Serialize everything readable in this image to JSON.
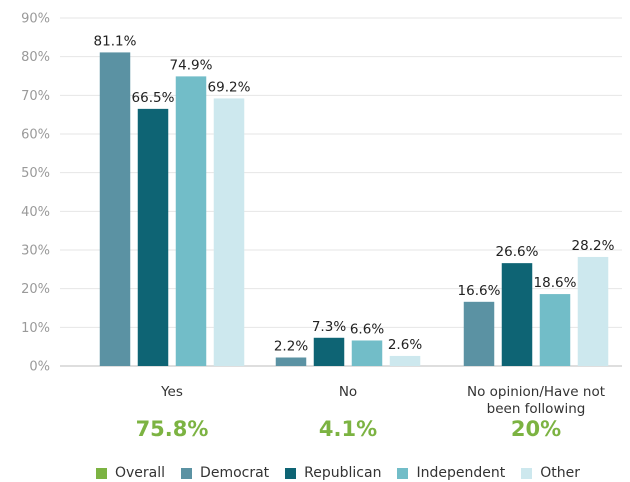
{
  "chart_data": {
    "type": "bar",
    "categories": [
      "Yes",
      "No",
      "No opinion/Have not been following"
    ],
    "category_lines": [
      [
        "Yes"
      ],
      [
        "No"
      ],
      [
        "No opinion/Have not",
        "been following"
      ]
    ],
    "ylim": [
      0,
      90
    ],
    "yticks": [
      0,
      10,
      20,
      30,
      40,
      50,
      60,
      70,
      80,
      90
    ],
    "ytick_labels": [
      "0%",
      "10%",
      "20%",
      "30%",
      "40%",
      "50%",
      "60%",
      "70%",
      "80%",
      "90%"
    ],
    "grid": true,
    "series": [
      {
        "name": "Democrat",
        "color": "#5b92a3",
        "values": [
          81.1,
          2.2,
          16.6
        ],
        "labels": [
          "81.1%",
          "2.2%",
          "16.6%"
        ]
      },
      {
        "name": "Republican",
        "color": "#0e6474",
        "values": [
          66.5,
          7.3,
          26.6
        ],
        "labels": [
          "66.5%",
          "7.3%",
          "26.6%"
        ]
      },
      {
        "name": "Independent",
        "color": "#72bdc8",
        "values": [
          74.9,
          6.6,
          18.6
        ],
        "labels": [
          "74.9%",
          "6.6%",
          "18.6%"
        ]
      },
      {
        "name": "Other",
        "color": "#cde8ee",
        "values": [
          69.2,
          2.6,
          28.2
        ],
        "labels": [
          "69.2%",
          "2.6%",
          "28.2%"
        ]
      }
    ],
    "overall": {
      "name": "Overall",
      "color": "#7cb342",
      "values": [
        75.8,
        4.1,
        20
      ],
      "labels": [
        "75.8%",
        "4.1%",
        "20%"
      ]
    },
    "legend_position": "bottom"
  },
  "legend": [
    {
      "label": "Overall",
      "color": "#7cb342"
    },
    {
      "label": "Democrat",
      "color": "#5b92a3"
    },
    {
      "label": "Republican",
      "color": "#0e6474"
    },
    {
      "label": "Independent",
      "color": "#72bdc8"
    },
    {
      "label": "Other",
      "color": "#cde8ee"
    }
  ]
}
